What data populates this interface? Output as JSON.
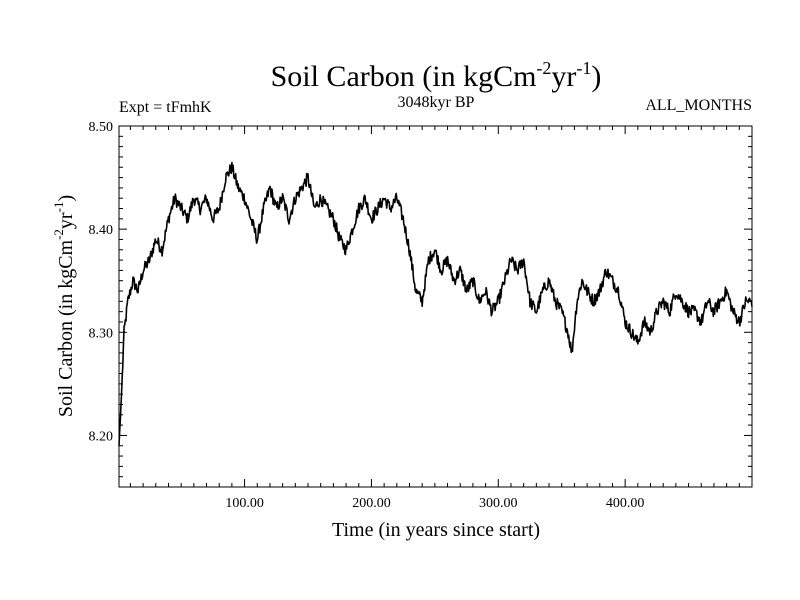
{
  "chart_data": {
    "type": "line",
    "title": "Soil Carbon (in kgCm",
    "title_exp1": "-2",
    "title_mid": "yr",
    "title_exp2": "-1",
    "title_end": ")",
    "subtitle_left": "Expt = tFmhK",
    "subtitle_center": "3048kyr BP",
    "subtitle_right": "ALL_MONTHS",
    "xlabel": "Time (in years since start)",
    "ylabel": "Soil Carbon (in kgCm",
    "ylabel_exp1": "-2",
    "ylabel_mid": "yr",
    "ylabel_exp2": "-1",
    "ylabel_end": ")",
    "xlim": [
      1,
      500
    ],
    "ylim": [
      8.15,
      8.5
    ],
    "xticks": [
      100,
      200,
      300,
      400
    ],
    "xtick_labels": [
      "100.00",
      "200.00",
      "300.00",
      "400.00"
    ],
    "yticks": [
      8.2,
      8.3,
      8.4,
      8.5
    ],
    "ytick_labels": [
      "8.20",
      "8.30",
      "8.40",
      "8.50"
    ],
    "series": [
      {
        "name": "Soil Carbon",
        "color": "#000000",
        "x": [
          1,
          3,
          5,
          8,
          12,
          16,
          20,
          25,
          30,
          35,
          40,
          45,
          50,
          55,
          60,
          65,
          70,
          75,
          80,
          85,
          90,
          95,
          100,
          105,
          110,
          115,
          120,
          125,
          130,
          135,
          140,
          145,
          150,
          155,
          160,
          165,
          170,
          175,
          180,
          185,
          190,
          195,
          200,
          205,
          210,
          215,
          220,
          225,
          230,
          235,
          240,
          245,
          250,
          255,
          260,
          265,
          270,
          275,
          280,
          285,
          290,
          295,
          300,
          305,
          310,
          315,
          320,
          325,
          330,
          335,
          340,
          345,
          350,
          355,
          358,
          362,
          366,
          370,
          375,
          380,
          385,
          390,
          395,
          400,
          405,
          410,
          415,
          420,
          425,
          430,
          435,
          440,
          445,
          450,
          455,
          460,
          465,
          470,
          475,
          480,
          485,
          490,
          495,
          500
        ],
        "values": [
          8.19,
          8.24,
          8.3,
          8.33,
          8.35,
          8.34,
          8.36,
          8.37,
          8.39,
          8.38,
          8.41,
          8.43,
          8.42,
          8.41,
          8.43,
          8.42,
          8.43,
          8.41,
          8.42,
          8.45,
          8.46,
          8.44,
          8.43,
          8.41,
          8.39,
          8.42,
          8.44,
          8.42,
          8.43,
          8.41,
          8.43,
          8.44,
          8.45,
          8.42,
          8.43,
          8.42,
          8.41,
          8.39,
          8.38,
          8.4,
          8.42,
          8.43,
          8.41,
          8.42,
          8.43,
          8.42,
          8.43,
          8.41,
          8.38,
          8.34,
          8.33,
          8.37,
          8.38,
          8.36,
          8.37,
          8.35,
          8.36,
          8.34,
          8.35,
          8.33,
          8.34,
          8.32,
          8.33,
          8.35,
          8.37,
          8.36,
          8.37,
          8.33,
          8.32,
          8.34,
          8.35,
          8.33,
          8.32,
          8.3,
          8.28,
          8.33,
          8.35,
          8.34,
          8.33,
          8.34,
          8.36,
          8.35,
          8.34,
          8.31,
          8.3,
          8.29,
          8.31,
          8.3,
          8.32,
          8.33,
          8.32,
          8.34,
          8.33,
          8.32,
          8.32,
          8.31,
          8.33,
          8.32,
          8.33,
          8.34,
          8.32,
          8.31,
          8.33,
          8.33
        ]
      }
    ],
    "noise_amplitude": 0.006,
    "grid": false,
    "legend": "none"
  }
}
